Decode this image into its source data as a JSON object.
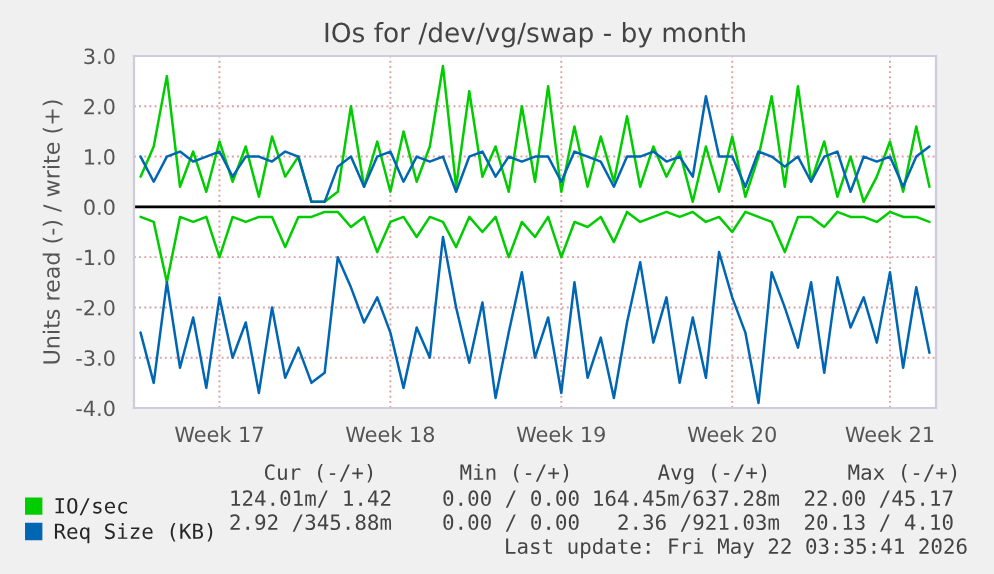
{
  "chart_data": {
    "type": "line",
    "title": "IOs for /dev/vg/swap - by month",
    "ylabel": "Units read (-) / write (+)",
    "categories": [
      null,
      null,
      null,
      null,
      null,
      null,
      "Week 17",
      null,
      null,
      null,
      null,
      null,
      null,
      null,
      null,
      null,
      null,
      null,
      null,
      "Week 18",
      null,
      null,
      null,
      null,
      null,
      null,
      null,
      null,
      null,
      null,
      null,
      null,
      "Week 19",
      null,
      null,
      null,
      null,
      null,
      null,
      null,
      null,
      null,
      null,
      null,
      null,
      "Week 20",
      null,
      null,
      null,
      null,
      null,
      null,
      null,
      null,
      null,
      null,
      null,
      "Week 21",
      null,
      null,
      null
    ],
    "series": [
      {
        "color": "#00cc00",
        "values": [
          -0.2,
          -0.3,
          -1.5,
          -0.2,
          -0.3,
          -0.2,
          -1.0,
          -0.2,
          -0.3,
          -0.2,
          -0.2,
          -0.8,
          -0.2,
          -0.2,
          -0.1,
          -0.1,
          -0.4,
          -0.2,
          -0.9,
          -0.3,
          -0.2,
          -0.6,
          -0.2,
          -0.3,
          -0.8,
          -0.2,
          -0.5,
          -0.2,
          -1.0,
          -0.3,
          -0.6,
          -0.2,
          -1.0,
          -0.3,
          -0.4,
          -0.2,
          -0.7,
          -0.1,
          -0.3,
          -0.2,
          -0.1,
          -0.2,
          -0.1,
          -0.3,
          -0.2,
          -0.5,
          -0.1,
          -0.2,
          -0.3,
          -0.9,
          -0.2,
          -0.2,
          -0.4,
          -0.1,
          -0.2,
          -0.2,
          -0.3,
          -0.1,
          -0.2,
          -0.2,
          -0.3
        ]
      },
      {
        "name": "IO/sec",
        "color": "#00cc00",
        "values": [
          0.6,
          1.2,
          2.6,
          0.4,
          1.1,
          0.3,
          1.3,
          0.5,
          1.2,
          0.2,
          1.4,
          0.6,
          1.0,
          0.1,
          0.1,
          0.3,
          2.0,
          0.4,
          1.3,
          0.3,
          1.5,
          0.5,
          1.2,
          2.8,
          0.4,
          2.3,
          0.6,
          1.2,
          0.3,
          2.0,
          0.5,
          2.4,
          0.3,
          1.6,
          0.4,
          1.4,
          0.5,
          1.8,
          0.4,
          1.2,
          0.6,
          1.1,
          0.1,
          1.2,
          0.3,
          1.4,
          0.2,
          1.0,
          2.2,
          0.4,
          2.4,
          0.5,
          1.3,
          0.2,
          1.0,
          0.1,
          0.6,
          1.3,
          0.3,
          1.6,
          0.4
        ]
      },
      {
        "color": "#0066b3",
        "values": [
          -2.5,
          -3.5,
          -1.5,
          -3.2,
          -2.2,
          -3.6,
          -1.8,
          -3.0,
          -2.3,
          -3.7,
          -2.0,
          -3.4,
          -2.8,
          -3.5,
          -3.3,
          -1.0,
          -1.6,
          -2.3,
          -1.8,
          -2.5,
          -3.6,
          -2.4,
          -3.0,
          -0.6,
          -2.0,
          -3.1,
          -1.9,
          -3.8,
          -2.5,
          -1.3,
          -3.0,
          -2.2,
          -3.7,
          -1.5,
          -3.4,
          -2.6,
          -3.8,
          -2.3,
          -1.1,
          -2.7,
          -1.8,
          -3.5,
          -2.2,
          -3.4,
          -0.9,
          -1.8,
          -2.5,
          -3.9,
          -1.3,
          -2.0,
          -2.8,
          -1.5,
          -3.3,
          -1.4,
          -2.4,
          -1.8,
          -2.7,
          -1.3,
          -3.2,
          -1.6,
          -2.9
        ]
      },
      {
        "name": "Req Size (KB)",
        "color": "#0066b3",
        "values": [
          1.0,
          0.5,
          1.0,
          1.1,
          0.9,
          1.0,
          1.1,
          0.6,
          1.0,
          1.0,
          0.9,
          1.1,
          1.0,
          0.1,
          0.1,
          0.8,
          1.0,
          0.4,
          1.0,
          1.1,
          0.5,
          1.0,
          0.9,
          1.0,
          0.3,
          1.0,
          1.1,
          0.6,
          1.0,
          0.9,
          1.0,
          1.0,
          0.5,
          1.1,
          1.0,
          0.9,
          0.4,
          1.0,
          1.0,
          1.1,
          0.9,
          1.0,
          0.6,
          2.2,
          1.0,
          1.0,
          0.4,
          1.1,
          1.0,
          0.8,
          1.0,
          0.5,
          1.0,
          1.1,
          0.3,
          1.0,
          0.9,
          1.0,
          0.4,
          1.0,
          1.2
        ]
      }
    ],
    "ylim": [
      -4,
      3
    ],
    "yticks": [
      {
        "value": -4,
        "label": "-4.0"
      },
      {
        "value": -3,
        "label": "-3.0"
      },
      {
        "value": -2,
        "label": "-2.0"
      },
      {
        "value": -1,
        "label": "-1.0"
      },
      {
        "value": 0,
        "label": "0.0"
      },
      {
        "value": 1,
        "label": "1.0"
      },
      {
        "value": 2,
        "label": "2.0"
      },
      {
        "value": 3,
        "label": "3.0"
      }
    ],
    "ref_lines": [
      {
        "axis": "y",
        "value": 0,
        "color": "#000000"
      }
    ],
    "grid": true,
    "legend": "bottom",
    "marker": "none",
    "line_style": "solid",
    "annotations": [
      "Cur (-/+)",
      "Min (-/+)",
      "Avg (-/+)",
      "Max (-/+)",
      "124.01m/ 1.42",
      "0.00 / 0.00",
      "164.45m/637.28m",
      "22.00 /45.17",
      "2.92 /345.88m",
      "0.00 / 0.00",
      "2.36 /921.03m",
      "20.13 / 4.10",
      "Last update: Fri May 22 03:35:41 2026"
    ]
  }
}
